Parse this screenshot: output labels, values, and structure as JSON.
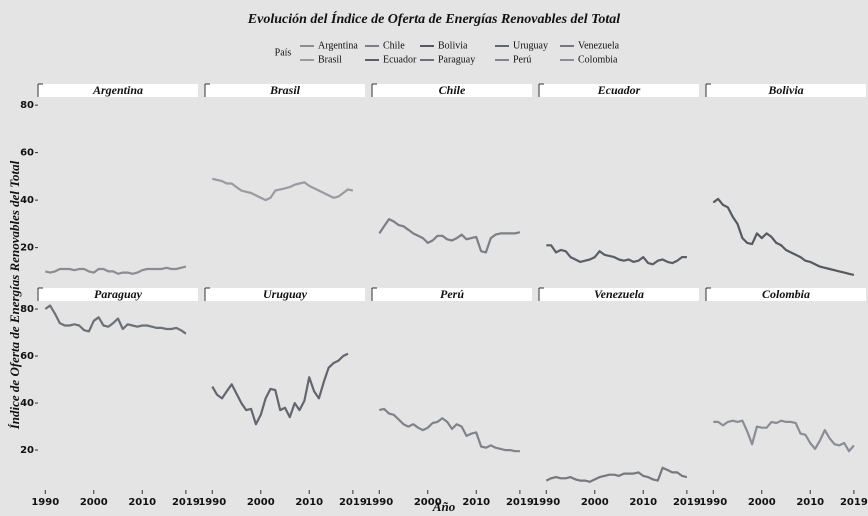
{
  "chart_data": {
    "type": "line",
    "title": "Evolución del Índice de Oferta de Energías Renovables del Total",
    "legend_title": "País",
    "xlabel": "Año",
    "ylabel": "Índice de Oferta de Energías Renovables del Total",
    "x": [
      1990,
      1991,
      1992,
      1993,
      1994,
      1995,
      1996,
      1997,
      1998,
      1999,
      2000,
      2001,
      2002,
      2003,
      2004,
      2005,
      2006,
      2007,
      2008,
      2009,
      2010,
      2011,
      2012,
      2013,
      2014,
      2015,
      2016,
      2017,
      2018,
      2019
    ],
    "xlim": [
      1988.5,
      2021.5
    ],
    "xticks": [
      1990,
      2000,
      2010,
      2019
    ],
    "ylim": [
      3,
      83
    ],
    "yticks": [
      20,
      40,
      60,
      80
    ],
    "grid": false,
    "series": [
      {
        "name": "Argentina",
        "color": "#8c8c94",
        "values": [
          10,
          9.5,
          10,
          11,
          11,
          11,
          10.5,
          11,
          11,
          10,
          9.5,
          11,
          11,
          10,
          10,
          9,
          9.5,
          9.5,
          9,
          9.5,
          10.5,
          11,
          11,
          11,
          11,
          11.5,
          11,
          11,
          11.5,
          12
        ]
      },
      {
        "name": "Brasil",
        "color": "#9a9aa2",
        "values": [
          49,
          48.5,
          48,
          47,
          47,
          45.5,
          44,
          43.5,
          43,
          42,
          41,
          40,
          41,
          44,
          44.5,
          45,
          45.5,
          46.5,
          47,
          47.5,
          46,
          45,
          44,
          43,
          42,
          41,
          41.5,
          43,
          44.5,
          44
        ]
      },
      {
        "name": "Chile",
        "color": "#7d7f88",
        "values": [
          26,
          29,
          32,
          31,
          29.5,
          29,
          27.5,
          26,
          25,
          24,
          22,
          23,
          25,
          25,
          23.5,
          23,
          24,
          25.5,
          23.5,
          24,
          24.5,
          18.5,
          18,
          24,
          25.5,
          26,
          26,
          26,
          26,
          26.5
        ]
      },
      {
        "name": "Ecuador",
        "color": "#5a5e66",
        "values": [
          21,
          21,
          18,
          19,
          18.5,
          16,
          15,
          14,
          14.5,
          15,
          16,
          18.5,
          17,
          16.5,
          16,
          15,
          14.5,
          15,
          14,
          14.5,
          16,
          13.5,
          13,
          14.5,
          15,
          14,
          13.5,
          14.5,
          16,
          16
        ]
      },
      {
        "name": "Bolivia",
        "color": "#555a62",
        "values": [
          39,
          40.5,
          38,
          37,
          33,
          30,
          24,
          22,
          21.5,
          26,
          24,
          26,
          24.5,
          22,
          21,
          19,
          18,
          17,
          16,
          14.5,
          14,
          13,
          12,
          11.5,
          11,
          10.5,
          10,
          9.5,
          9,
          8.5
        ]
      },
      {
        "name": "Paraguay",
        "color": "#6c7078",
        "values": [
          80,
          81.5,
          78,
          74,
          73,
          73,
          73.5,
          73,
          71,
          70.5,
          75,
          76.5,
          73,
          72.5,
          74,
          76,
          71.5,
          73.5,
          73,
          72.5,
          73,
          73,
          72.5,
          72,
          72,
          71.5,
          71.5,
          72,
          71,
          69.5
        ]
      },
      {
        "name": "Uruguay",
        "color": "#62666e",
        "values": [
          47,
          43.5,
          42,
          45,
          48,
          44,
          40,
          37,
          37.5,
          31,
          35,
          42,
          46,
          45.5,
          37,
          38,
          34,
          40,
          37,
          41,
          51,
          45,
          42,
          49,
          55,
          57,
          58,
          60,
          61,
          null
        ]
      },
      {
        "name": "Perú",
        "color": "#80838b",
        "values": [
          37,
          37.5,
          35.5,
          35,
          33,
          31,
          30,
          31,
          29.5,
          28.5,
          29.5,
          31.5,
          32,
          33.5,
          32,
          29,
          31,
          30,
          26,
          27,
          27.5,
          21.5,
          21,
          22,
          21,
          20.5,
          20,
          20,
          19.5,
          19.5
        ]
      },
      {
        "name": "Venezuela",
        "color": "#75787f",
        "values": [
          7,
          8,
          8.5,
          8,
          8,
          8.5,
          7.5,
          7,
          7,
          6.5,
          7.5,
          8.5,
          9,
          9.5,
          9.5,
          9,
          10,
          10,
          10,
          10.5,
          9,
          8.5,
          7.5,
          7,
          12.5,
          11.5,
          10.5,
          10.5,
          9,
          8.5
        ]
      },
      {
        "name": "Colombia",
        "color": "#8a8d94",
        "values": [
          32,
          32,
          30.5,
          32,
          32.5,
          32,
          32.5,
          28,
          22.5,
          30,
          29.5,
          29.5,
          32,
          31.5,
          32.5,
          32,
          32,
          31.5,
          27,
          26.5,
          23,
          20.5,
          24,
          28.5,
          25,
          22.5,
          22,
          23,
          19.5,
          22
        ]
      }
    ]
  }
}
